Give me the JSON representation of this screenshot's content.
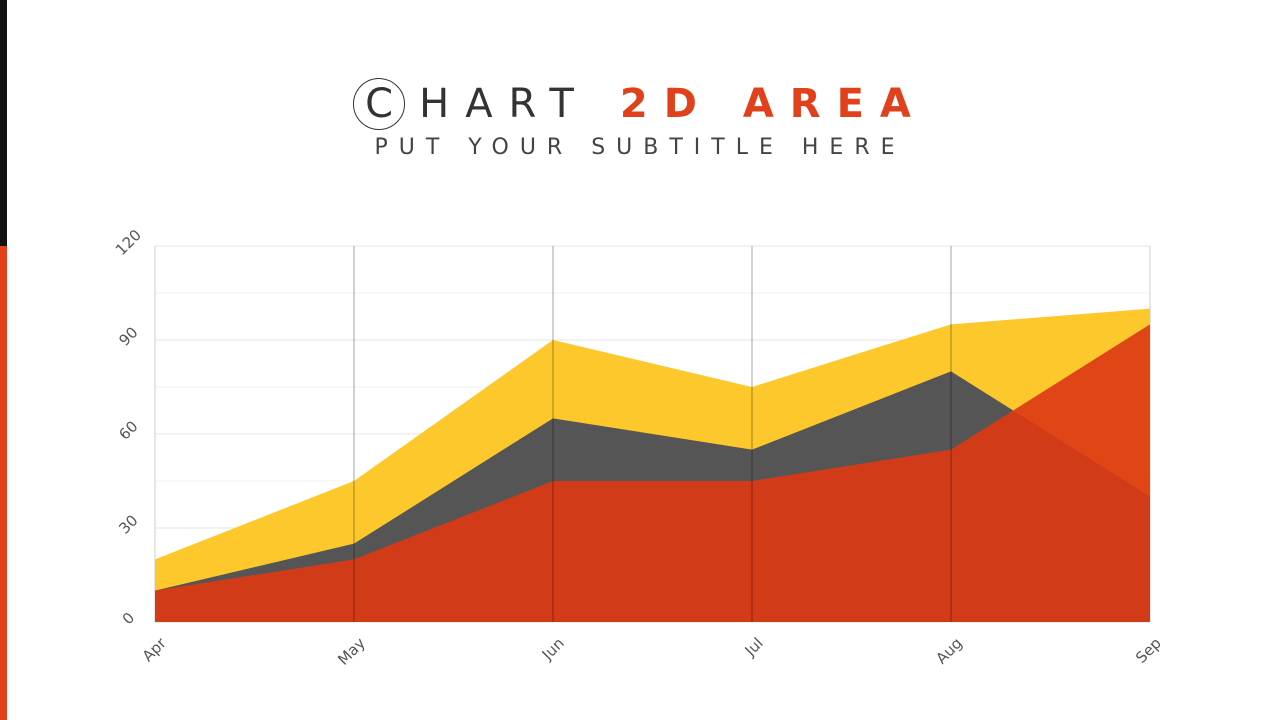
{
  "header": {
    "title_main": "CHART",
    "title_highlight": "2D AREA",
    "subtitle": "PUT YOUR SUBTITLE HERE"
  },
  "chart_data": {
    "type": "area",
    "categories": [
      "Apr",
      "May",
      "Jun",
      "Jul",
      "Aug",
      "Sep"
    ],
    "series": [
      {
        "color": "#fcc82c",
        "values": [
          20,
          45,
          90,
          75,
          95,
          100
        ]
      },
      {
        "color": "#555555",
        "values": [
          10,
          25,
          65,
          55,
          80,
          40
        ]
      },
      {
        "color": "#dc3a14",
        "values": [
          10,
          20,
          45,
          45,
          55,
          95
        ]
      }
    ],
    "ylim": [
      0,
      120
    ],
    "yticks": [
      0,
      30,
      60,
      90,
      120
    ],
    "grid": true
  }
}
